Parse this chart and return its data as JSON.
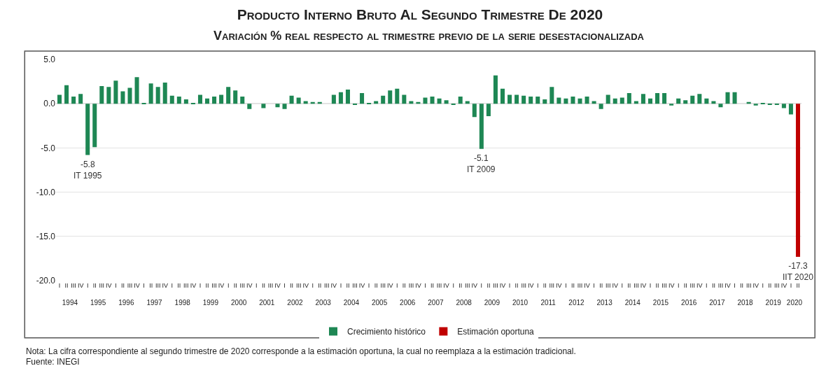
{
  "chart_data": {
    "type": "bar",
    "title": "Producto Interno Bruto Al Segundo Trimestre De 2020",
    "subtitle": "Variación % real respecto al trimestre previo de la serie desestacionalizada",
    "categories": [
      "I",
      "II",
      "III",
      "IV",
      "I",
      "II",
      "III",
      "IV",
      "I",
      "II",
      "III",
      "IV",
      "I",
      "II",
      "III",
      "IV",
      "I",
      "II",
      "III",
      "IV",
      "I",
      "II",
      "III",
      "IV",
      "I",
      "II",
      "III",
      "IV",
      "I",
      "II",
      "III",
      "IV",
      "I",
      "II",
      "III",
      "IV",
      "I",
      "II",
      "III",
      "IV",
      "I",
      "II",
      "III",
      "IV",
      "I",
      "II",
      "III",
      "IV",
      "I",
      "II",
      "III",
      "IV",
      "I",
      "II",
      "III",
      "IV",
      "I",
      "II",
      "III",
      "IV",
      "I",
      "II",
      "III",
      "IV",
      "I",
      "II",
      "III",
      "IV",
      "I",
      "II",
      "III",
      "IV",
      "I",
      "II",
      "III",
      "IV",
      "I",
      "II",
      "III",
      "IV",
      "I",
      "II",
      "III",
      "IV",
      "I",
      "II",
      "III",
      "IV",
      "I",
      "II",
      "III",
      "IV",
      "I",
      "II",
      "III",
      "IV",
      "I",
      "II",
      "III",
      "IV",
      "I",
      "II",
      "III",
      "IV",
      "I",
      "II"
    ],
    "series": [
      {
        "name": "Crecimiento histórico",
        "color": "#1e8754",
        "values": [
          1.0,
          2.1,
          0.8,
          1.1,
          -5.8,
          -4.9,
          2.0,
          1.9,
          2.6,
          1.4,
          1.8,
          3.0,
          0.1,
          2.3,
          1.9,
          2.4,
          0.9,
          0.8,
          0.5,
          0.1,
          1.0,
          0.6,
          0.8,
          1.0,
          1.9,
          1.5,
          0.8,
          -0.6,
          0.0,
          -0.5,
          0.0,
          -0.4,
          -0.6,
          0.9,
          0.7,
          0.3,
          0.2,
          0.2,
          0.0,
          1.0,
          1.3,
          1.6,
          -0.1,
          1.2,
          0.1,
          0.3,
          0.9,
          1.5,
          1.7,
          1.0,
          0.3,
          0.2,
          0.7,
          0.8,
          0.6,
          0.4,
          -0.1,
          0.8,
          0.3,
          -1.5,
          -5.1,
          -1.4,
          3.2,
          1.7,
          1.0,
          1.0,
          0.9,
          0.8,
          0.8,
          0.5,
          1.9,
          0.7,
          0.6,
          0.8,
          0.6,
          0.8,
          0.3,
          -0.6,
          1.0,
          0.6,
          0.7,
          1.2,
          0.3,
          1.1,
          0.6,
          1.2,
          1.2,
          -0.2,
          0.6,
          0.4,
          0.9,
          1.1,
          0.6,
          0.3,
          -0.4,
          1.3,
          1.3,
          0.0,
          0.2,
          -0.2,
          0.1,
          -0.1,
          -0.1,
          -0.5,
          -1.2,
          null
        ],
        "value_labels": [
          null,
          null,
          null,
          null,
          "-5.8\nIT 1995",
          null,
          null,
          null,
          null,
          null,
          null,
          null,
          null,
          null,
          null,
          null,
          null,
          null,
          null,
          null,
          null,
          null,
          null,
          null,
          null,
          null,
          null,
          null,
          null,
          null,
          null,
          null,
          null,
          null,
          null,
          null,
          null,
          null,
          null,
          null,
          null,
          null,
          null,
          null,
          null,
          null,
          null,
          null,
          null,
          null,
          null,
          null,
          null,
          null,
          null,
          null,
          null,
          null,
          null,
          null,
          "-5.1\nIT 2009",
          null,
          null,
          null,
          null,
          null,
          null,
          null,
          null,
          null,
          null,
          null,
          null,
          null,
          null,
          null,
          null,
          null,
          null,
          null,
          null,
          null,
          null,
          null,
          null,
          null,
          null,
          null,
          null,
          null,
          null,
          null,
          null,
          null,
          null,
          null,
          null,
          null,
          null,
          null,
          null,
          null,
          null,
          null,
          null,
          null
        ]
      },
      {
        "name": "Estimación oportuna",
        "color": "#c00000",
        "values": [
          null,
          null,
          null,
          null,
          null,
          null,
          null,
          null,
          null,
          null,
          null,
          null,
          null,
          null,
          null,
          null,
          null,
          null,
          null,
          null,
          null,
          null,
          null,
          null,
          null,
          null,
          null,
          null,
          null,
          null,
          null,
          null,
          null,
          null,
          null,
          null,
          null,
          null,
          null,
          null,
          null,
          null,
          null,
          null,
          null,
          null,
          null,
          null,
          null,
          null,
          null,
          null,
          null,
          null,
          null,
          null,
          null,
          null,
          null,
          null,
          null,
          null,
          null,
          null,
          null,
          null,
          null,
          null,
          null,
          null,
          null,
          null,
          null,
          null,
          null,
          null,
          null,
          null,
          null,
          null,
          null,
          null,
          null,
          null,
          null,
          null,
          null,
          null,
          null,
          null,
          null,
          null,
          null,
          null,
          null,
          null,
          null,
          null,
          null,
          null,
          null,
          null,
          null,
          null,
          null,
          -17.3
        ],
        "value_labels": [
          null,
          null,
          null,
          null,
          null,
          null,
          null,
          null,
          null,
          null,
          null,
          null,
          null,
          null,
          null,
          null,
          null,
          null,
          null,
          null,
          null,
          null,
          null,
          null,
          null,
          null,
          null,
          null,
          null,
          null,
          null,
          null,
          null,
          null,
          null,
          null,
          null,
          null,
          null,
          null,
          null,
          null,
          null,
          null,
          null,
          null,
          null,
          null,
          null,
          null,
          null,
          null,
          null,
          null,
          null,
          null,
          null,
          null,
          null,
          null,
          null,
          null,
          null,
          null,
          null,
          null,
          null,
          null,
          null,
          null,
          null,
          null,
          null,
          null,
          null,
          null,
          null,
          null,
          null,
          null,
          null,
          null,
          null,
          null,
          null,
          null,
          null,
          null,
          null,
          null,
          null,
          null,
          null,
          null,
          null,
          null,
          null,
          null,
          null,
          null,
          null,
          null,
          null,
          null,
          null,
          "-17.3\nIIT 2020"
        ]
      }
    ],
    "x2lim": [
      "1994-01-01",
      "2020-07-01"
    ],
    "x2ticks": [
      {
        "value": "1994-07-01",
        "label": "1994"
      },
      {
        "value": "1995-07-01",
        "label": "1995"
      },
      {
        "value": "1996-07-01",
        "label": "1996"
      },
      {
        "value": "1997-07-01",
        "label": "1997"
      },
      {
        "value": "1998-07-01",
        "label": "1998"
      },
      {
        "value": "1999-07-01",
        "label": "1999"
      },
      {
        "value": "2000-07-01",
        "label": "2000"
      },
      {
        "value": "2001-07-01",
        "label": "2001"
      },
      {
        "value": "2002-07-01",
        "label": "2002"
      },
      {
        "value": "2003-07-01",
        "label": "2003"
      },
      {
        "value": "2004-07-01",
        "label": "2004"
      },
      {
        "value": "2005-07-01",
        "label": "2005"
      },
      {
        "value": "2006-07-01",
        "label": "2006"
      },
      {
        "value": "2007-07-01",
        "label": "2007"
      },
      {
        "value": "2008-07-01",
        "label": "2008"
      },
      {
        "value": "2009-07-01",
        "label": "2009"
      },
      {
        "value": "2010-07-01",
        "label": "2010"
      },
      {
        "value": "2011-07-01",
        "label": "2011"
      },
      {
        "value": "2012-07-01",
        "label": "2012"
      },
      {
        "value": "2013-07-01",
        "label": "2013"
      },
      {
        "value": "2014-07-01",
        "label": "2014"
      },
      {
        "value": "2015-07-01",
        "label": "2015"
      },
      {
        "value": "2016-07-01",
        "label": "2016"
      },
      {
        "value": "2017-07-01",
        "label": "2017"
      },
      {
        "value": "2018-07-01",
        "label": "2018"
      },
      {
        "value": "2019-07-01",
        "label": "2019"
      },
      {
        "value": "2020-04-01",
        "label": "2020"
      }
    ],
    "ylim": [
      -20,
      5
    ],
    "yticks": [
      {
        "value": -20,
        "label": "-20.0"
      },
      {
        "value": -15,
        "label": "-15.0"
      },
      {
        "value": -10,
        "label": "-10.0"
      },
      {
        "value": -5,
        "label": "-5.0"
      },
      {
        "value": 0,
        "label": "0.0"
      },
      {
        "value": 5,
        "label": "5.0"
      }
    ],
    "grid": "y",
    "legend": "bottom",
    "annotations": [
      "Nota: La cifra correspondiente al segundo trimestre de 2020 corresponde a la estimación oportuna, la cual no reemplaza a la estimación tradicional.",
      "Fuente: INEGI"
    ]
  }
}
